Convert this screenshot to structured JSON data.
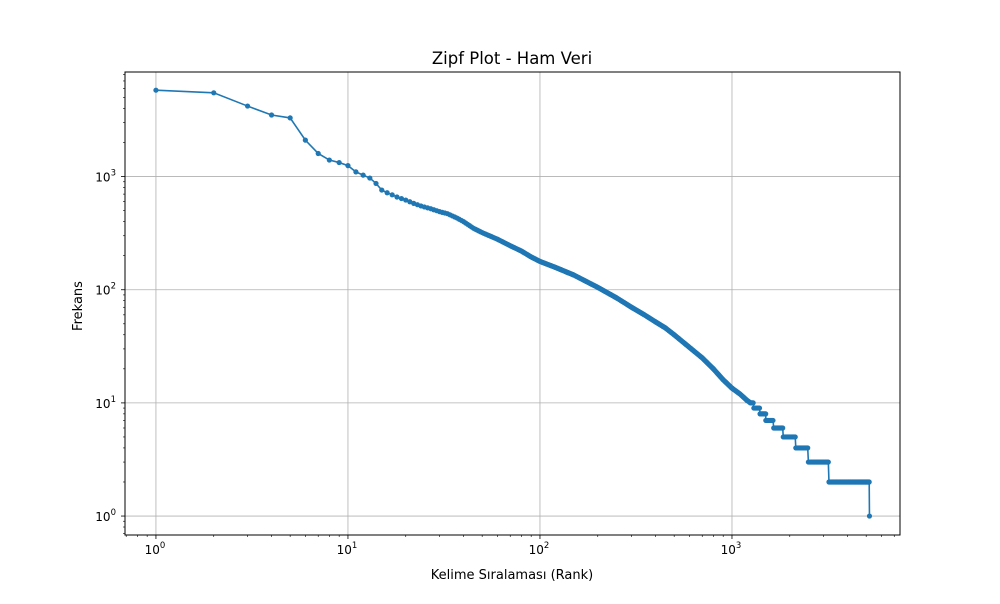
{
  "chart_data": {
    "type": "line",
    "title": "Zipf Plot - Ham Veri",
    "xlabel": "Kelime Sıralaması (Rank)",
    "ylabel": "Frekans",
    "xscale": "log",
    "yscale": "log",
    "xlim": [
      0.69,
      7500
    ],
    "ylim": [
      0.68,
      8400
    ],
    "x_ticks": [
      {
        "value": 1,
        "base": "10",
        "exp": "0"
      },
      {
        "value": 10,
        "base": "10",
        "exp": "1"
      },
      {
        "value": 100,
        "base": "10",
        "exp": "2"
      },
      {
        "value": 1000,
        "base": "10",
        "exp": "3"
      }
    ],
    "y_ticks": [
      {
        "value": 1,
        "base": "10",
        "exp": "0"
      },
      {
        "value": 10,
        "base": "10",
        "exp": "1"
      },
      {
        "value": 100,
        "base": "10",
        "exp": "2"
      },
      {
        "value": 1000,
        "base": "10",
        "exp": "3"
      }
    ],
    "grid": true,
    "color": "#1f77b4",
    "series": [
      {
        "points": [
          [
            1,
            5800
          ],
          [
            2,
            5500
          ],
          [
            3,
            4200
          ],
          [
            4,
            3500
          ],
          [
            5,
            3300
          ],
          [
            6,
            2100
          ],
          [
            7,
            1600
          ],
          [
            8,
            1400
          ],
          [
            9,
            1330
          ],
          [
            10,
            1250
          ],
          [
            11,
            1100
          ],
          [
            12,
            1030
          ],
          [
            13,
            970
          ],
          [
            14,
            870
          ],
          [
            15,
            760
          ],
          [
            16,
            720
          ],
          [
            17,
            690
          ],
          [
            18,
            660
          ],
          [
            20,
            620
          ],
          [
            22,
            580
          ],
          [
            24,
            550
          ],
          [
            27,
            520
          ],
          [
            30,
            490
          ],
          [
            33,
            470
          ],
          [
            37,
            430
          ],
          [
            40,
            400
          ],
          [
            45,
            350
          ],
          [
            50,
            320
          ],
          [
            60,
            280
          ],
          [
            70,
            245
          ],
          [
            80,
            220
          ],
          [
            90,
            195
          ],
          [
            100,
            178
          ],
          [
            120,
            158
          ],
          [
            150,
            135
          ],
          [
            200,
            105
          ],
          [
            250,
            85
          ],
          [
            300,
            70
          ],
          [
            350,
            60
          ],
          [
            400,
            52
          ],
          [
            450,
            46
          ],
          [
            500,
            40
          ],
          [
            600,
            31
          ],
          [
            700,
            25
          ],
          [
            800,
            20
          ],
          [
            900,
            16
          ],
          [
            1000,
            13.5
          ],
          [
            1100,
            12
          ],
          [
            1200,
            10.5
          ],
          [
            1250,
            10
          ],
          [
            1300,
            9
          ],
          [
            1400,
            8
          ],
          [
            1500,
            7
          ],
          [
            1650,
            6
          ],
          [
            1850,
            5
          ],
          [
            2150,
            4
          ],
          [
            2500,
            3
          ],
          [
            3200,
            2
          ],
          [
            5200,
            1
          ]
        ]
      }
    ]
  }
}
